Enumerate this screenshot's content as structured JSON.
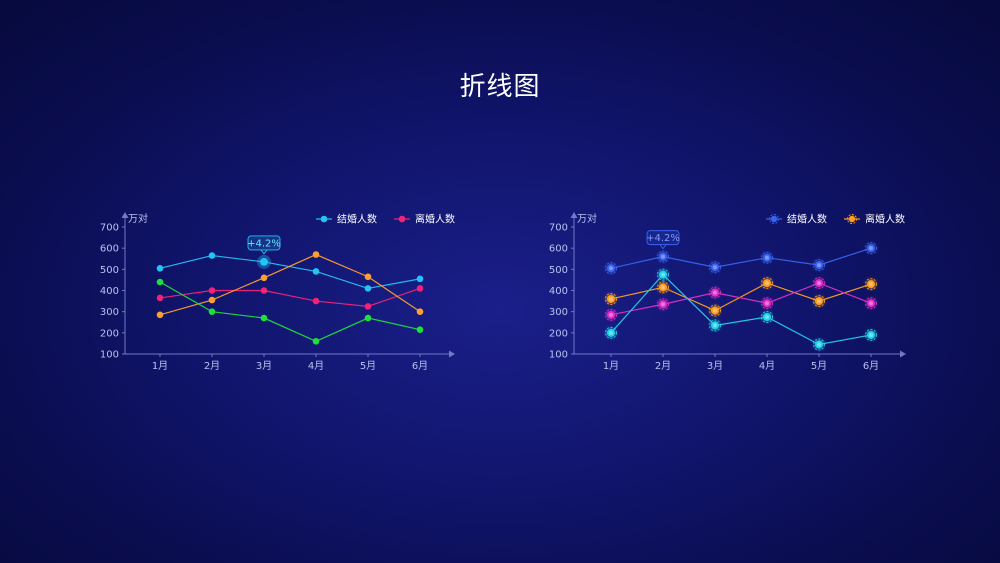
{
  "page": {
    "title": "折线图"
  },
  "colors": {
    "axis": "#6f79c9",
    "tick_text": "#b9c1f0"
  },
  "chart_data": [
    {
      "type": "line",
      "unit_label": "万对",
      "categories": [
        "1月",
        "2月",
        "3月",
        "4月",
        "5月",
        "6月"
      ],
      "yticks": [
        100,
        200,
        300,
        400,
        500,
        600,
        700
      ],
      "ylim": [
        100,
        700
      ],
      "legend": [
        {
          "label": "结婚人数",
          "color": "#22c4f5"
        },
        {
          "label": "离婚人数",
          "color": "#f0237a"
        }
      ],
      "legend_position": "top-right",
      "marker_style": "solid",
      "series": [
        {
          "color": "#22c4f5",
          "values": [
            505,
            565,
            535,
            490,
            410,
            455
          ]
        },
        {
          "color": "#f0237a",
          "values": [
            365,
            400,
            400,
            350,
            325,
            410
          ]
        },
        {
          "color": "#ff9f2e",
          "values": [
            285,
            355,
            460,
            570,
            465,
            300
          ]
        },
        {
          "color": "#1ee03a",
          "values": [
            440,
            300,
            270,
            160,
            270,
            215
          ]
        }
      ],
      "annotation": {
        "text": "+4.2%",
        "series_index": 0,
        "category_index": 2,
        "color": "#22c4f5"
      }
    },
    {
      "type": "line",
      "unit_label": "万对",
      "categories": [
        "1月",
        "2月",
        "3月",
        "4月",
        "5月",
        "6月"
      ],
      "yticks": [
        100,
        200,
        300,
        400,
        500,
        600,
        700
      ],
      "ylim": [
        100,
        700
      ],
      "legend": [
        {
          "label": "结婚人数",
          "color": "#3a63f0"
        },
        {
          "label": "离婚人数",
          "color": "#ff9f1a"
        }
      ],
      "legend_position": "top-right",
      "marker_style": "dashed-ring",
      "series": [
        {
          "color": "#3a63f0",
          "values": [
            505,
            560,
            510,
            555,
            520,
            600
          ]
        },
        {
          "color": "#ff9f1a",
          "values": [
            360,
            415,
            305,
            435,
            350,
            430
          ]
        },
        {
          "color": "#e02ec8",
          "values": [
            285,
            335,
            390,
            340,
            435,
            340
          ]
        },
        {
          "color": "#22d3e8",
          "values": [
            200,
            475,
            235,
            275,
            145,
            190
          ]
        }
      ],
      "annotation": {
        "text": "+4.2%",
        "series_index": 0,
        "category_index": 1,
        "color": "#3a63f0"
      }
    }
  ]
}
